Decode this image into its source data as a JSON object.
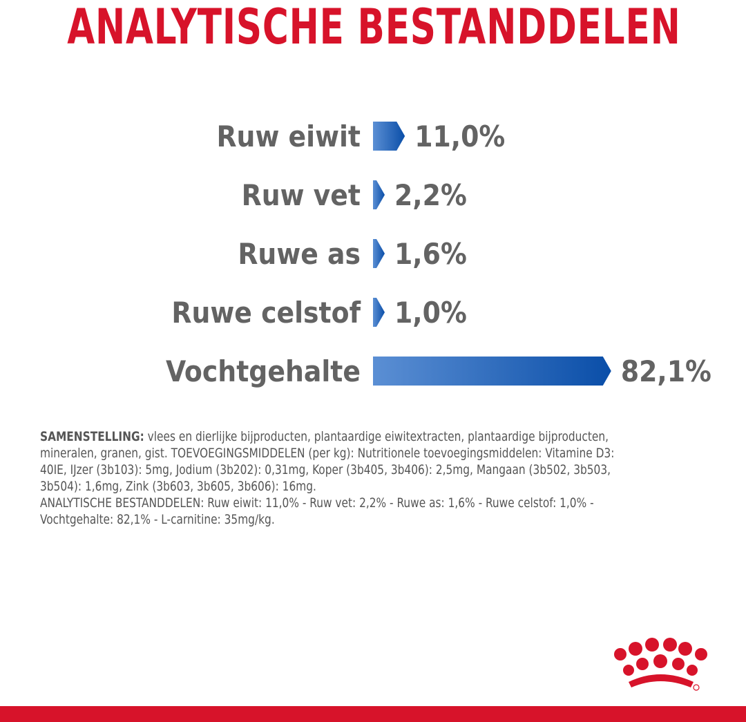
{
  "title": "ANALYTISCHE BESTANDDELEN",
  "chart_data": {
    "type": "bar",
    "orientation": "horizontal",
    "categories": [
      "Ruw eiwit",
      "Ruw vet",
      "Ruwe as",
      "Ruwe celstof",
      "Vochtgehalte"
    ],
    "values": [
      11.0,
      2.2,
      1.6,
      1.0,
      82.1
    ],
    "value_labels": [
      "11,0%",
      "2,2%",
      "1,6%",
      "1,0%",
      "82,1%"
    ],
    "unit": "%",
    "bar_gradient": [
      "#5b8fd4",
      "#0a4ea8"
    ],
    "label_color": "#636363"
  },
  "composition": {
    "line1_label": "SAMENSTELLING:",
    "line1_text": " vlees en dierlijke bijproducten, plantaardige eiwitextracten, plantaardige bijproducten, mineralen, granen, gist. TOEVOEGINGSMIDDELEN (per kg): Nutritionele toevoegingsmiddelen: Vitamine D3: 40IE, IJzer (3b103): 5mg, Jodium (3b202): 0,31mg, Koper (3b405, 3b406): 2,5mg, Mangaan (3b502, 3b503, 3b504): 1,6mg, Zink (3b603, 3b605, 3b606): 16mg.",
    "line2_text": "ANALYTISCHE BESTANDDELEN: Ruw eiwit: 11,0% - Ruw vet: 2,2% - Ruwe as: 1,6% - Ruwe celstof: 1,0% - Vochtgehalte: 82,1% - L-carnitine: 35mg/kg."
  },
  "colors": {
    "brand_red": "#d7132a",
    "text_gray": "#555555"
  },
  "logo": {
    "icon": "royal-canin-crown-logo"
  }
}
